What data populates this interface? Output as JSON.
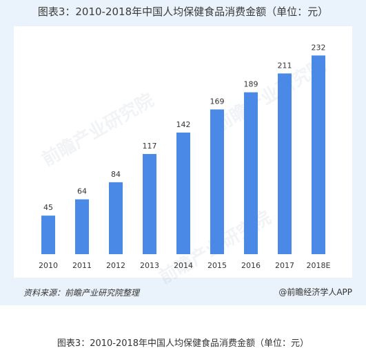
{
  "chart_title": "图表3：2010-2018年中国人均保健食品消费金额（单位：元）",
  "watermark_text": "前瞻产业研究院",
  "source_left": "资料来源：前瞻产业研究院整理",
  "source_right": "@前瞻经济学人APP",
  "caption": "图表3：2010-2018年中国人均保健食品消费金额（单位：元）",
  "colors": {
    "bar": "#4a8ae6",
    "background": "#eaf2fb"
  },
  "chart_data": {
    "type": "bar",
    "title": "图表3：2010-2018年中国人均保健食品消费金额（单位：元）",
    "categories": [
      "2010",
      "2011",
      "2012",
      "2013",
      "2014",
      "2015",
      "2016",
      "2017",
      "2018E"
    ],
    "values": [
      45,
      64,
      84,
      117,
      142,
      169,
      189,
      211,
      232
    ],
    "xlabel": "",
    "ylabel": "",
    "ylim": [
      0,
      250
    ],
    "grid": false,
    "legend": "none",
    "data_labels": true
  }
}
